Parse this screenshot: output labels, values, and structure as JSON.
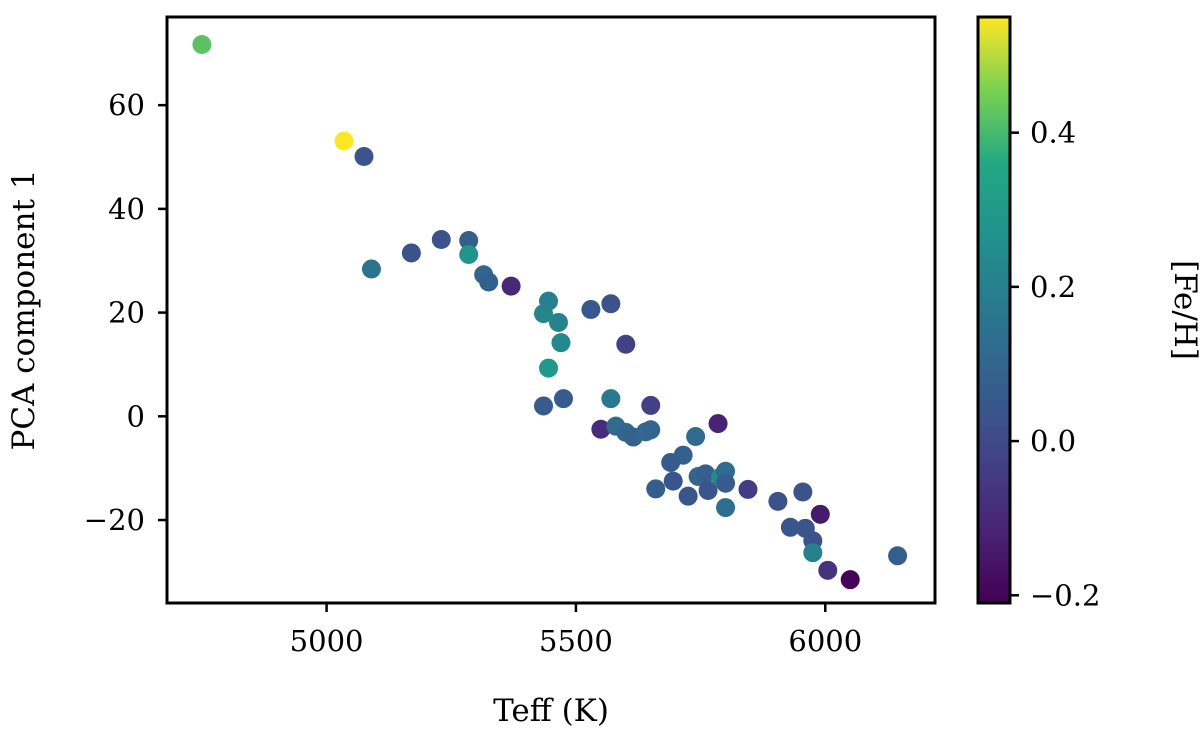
{
  "chart_data": {
    "type": "scatter",
    "xlabel": "Teff (K)",
    "ylabel": "PCA component 1",
    "xlim": [
      4680,
      6220
    ],
    "ylim": [
      -36,
      77
    ],
    "x_ticks": [
      5000,
      5500,
      6000
    ],
    "x_tick_labels": [
      "5000",
      "5500",
      "6000"
    ],
    "y_ticks": [
      -20,
      0,
      20,
      40,
      60
    ],
    "y_tick_labels": [
      "−20",
      "0",
      "20",
      "40",
      "60"
    ],
    "grid": false,
    "colorbar": {
      "label": "[Fe/H]",
      "colormap": "viridis",
      "range": [
        -0.21,
        0.55
      ],
      "ticks": [
        -0.2,
        0.0,
        0.2,
        0.4
      ],
      "tick_labels": [
        "−0.2",
        "0.0",
        "0.2",
        "0.4"
      ]
    },
    "points": [
      {
        "x": 4750,
        "y": 71.7,
        "c": 0.42
      },
      {
        "x": 5035,
        "y": 53.1,
        "c": 0.55
      },
      {
        "x": 5075,
        "y": 50.1,
        "c": 0.04
      },
      {
        "x": 5090,
        "y": 28.4,
        "c": 0.15
      },
      {
        "x": 5170,
        "y": 31.5,
        "c": 0.03
      },
      {
        "x": 5230,
        "y": 34.1,
        "c": 0.03
      },
      {
        "x": 5285,
        "y": 33.9,
        "c": 0.07
      },
      {
        "x": 5285,
        "y": 31.2,
        "c": 0.28
      },
      {
        "x": 5315,
        "y": 27.3,
        "c": 0.1
      },
      {
        "x": 5325,
        "y": 25.9,
        "c": 0.08
      },
      {
        "x": 5370,
        "y": 25.1,
        "c": -0.1
      },
      {
        "x": 5445,
        "y": 22.2,
        "c": 0.2
      },
      {
        "x": 5435,
        "y": 19.8,
        "c": 0.22
      },
      {
        "x": 5465,
        "y": 18.1,
        "c": 0.21
      },
      {
        "x": 5470,
        "y": 14.2,
        "c": 0.23
      },
      {
        "x": 5445,
        "y": 9.3,
        "c": 0.3
      },
      {
        "x": 5435,
        "y": 2.0,
        "c": 0.06
      },
      {
        "x": 5475,
        "y": 3.4,
        "c": 0.06
      },
      {
        "x": 5530,
        "y": 20.6,
        "c": 0.05
      },
      {
        "x": 5570,
        "y": 21.7,
        "c": 0.03
      },
      {
        "x": 5600,
        "y": 13.9,
        "c": -0.03
      },
      {
        "x": 5570,
        "y": 3.4,
        "c": 0.17
      },
      {
        "x": 5550,
        "y": -2.5,
        "c": -0.09
      },
      {
        "x": 5580,
        "y": -1.9,
        "c": 0.12
      },
      {
        "x": 5600,
        "y": -3.1,
        "c": 0.1
      },
      {
        "x": 5615,
        "y": -4.0,
        "c": 0.09
      },
      {
        "x": 5640,
        "y": -3.0,
        "c": 0.11
      },
      {
        "x": 5650,
        "y": -2.6,
        "c": 0.1
      },
      {
        "x": 5650,
        "y": 2.1,
        "c": -0.03
      },
      {
        "x": 5660,
        "y": -14.0,
        "c": 0.07
      },
      {
        "x": 5690,
        "y": -8.9,
        "c": 0.06
      },
      {
        "x": 5695,
        "y": -12.5,
        "c": 0.04
      },
      {
        "x": 5715,
        "y": -7.5,
        "c": 0.08
      },
      {
        "x": 5725,
        "y": -15.4,
        "c": 0.04
      },
      {
        "x": 5740,
        "y": -3.9,
        "c": 0.12
      },
      {
        "x": 5745,
        "y": -11.6,
        "c": 0.1
      },
      {
        "x": 5760,
        "y": -11.1,
        "c": 0.07
      },
      {
        "x": 5765,
        "y": -14.3,
        "c": 0.04
      },
      {
        "x": 5785,
        "y": -1.4,
        "c": -0.12
      },
      {
        "x": 5790,
        "y": -11.7,
        "c": 0.23
      },
      {
        "x": 5800,
        "y": -10.6,
        "c": 0.13
      },
      {
        "x": 5800,
        "y": -12.9,
        "c": 0.06
      },
      {
        "x": 5800,
        "y": -17.6,
        "c": 0.14
      },
      {
        "x": 5845,
        "y": -14.1,
        "c": -0.04
      },
      {
        "x": 5905,
        "y": -16.4,
        "c": 0.03
      },
      {
        "x": 5930,
        "y": -21.4,
        "c": 0.04
      },
      {
        "x": 5955,
        "y": -14.6,
        "c": 0.03
      },
      {
        "x": 5960,
        "y": -21.6,
        "c": 0.04
      },
      {
        "x": 5975,
        "y": -24.0,
        "c": 0.03
      },
      {
        "x": 5975,
        "y": -26.3,
        "c": 0.2
      },
      {
        "x": 5990,
        "y": -18.9,
        "c": -0.14
      },
      {
        "x": 6005,
        "y": -29.7,
        "c": -0.07
      },
      {
        "x": 6050,
        "y": -31.5,
        "c": -0.2
      },
      {
        "x": 6145,
        "y": -26.9,
        "c": 0.07
      }
    ]
  }
}
